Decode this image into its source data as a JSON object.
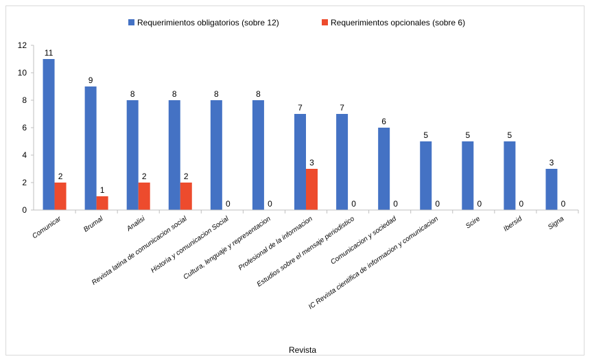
{
  "chart_data": {
    "type": "bar",
    "title": "",
    "xlabel": "Revista",
    "ylabel": "",
    "ylim": [
      0,
      12
    ],
    "yticks": [
      0,
      2,
      4,
      6,
      8,
      10,
      12
    ],
    "grid": false,
    "legend_position": "top",
    "categories": [
      "Comunicar",
      "Brumal",
      "Analisi",
      "Revista latina de comunicacion social",
      "Historia y comunicacion Social",
      "Cultura, lenguaje y representacion",
      "Profesional de la informacion",
      "Estudios sobre el mensaje periodistico",
      "Comunicacion y sociedad",
      "IC Revista cientifica de informacion y comunicacion",
      "Scire",
      "Ibersid",
      "Signa"
    ],
    "series": [
      {
        "name": "Requerimientos obligatorios (sobre 12)",
        "color": "#4472c4",
        "values": [
          11,
          9,
          8,
          8,
          8,
          8,
          7,
          7,
          6,
          5,
          5,
          5,
          3
        ]
      },
      {
        "name": "Requerimientos opcionales (sobre 6)",
        "color": "#ed4b2d",
        "values": [
          2,
          1,
          2,
          2,
          0,
          0,
          3,
          0,
          0,
          0,
          0,
          0,
          0
        ]
      }
    ]
  }
}
